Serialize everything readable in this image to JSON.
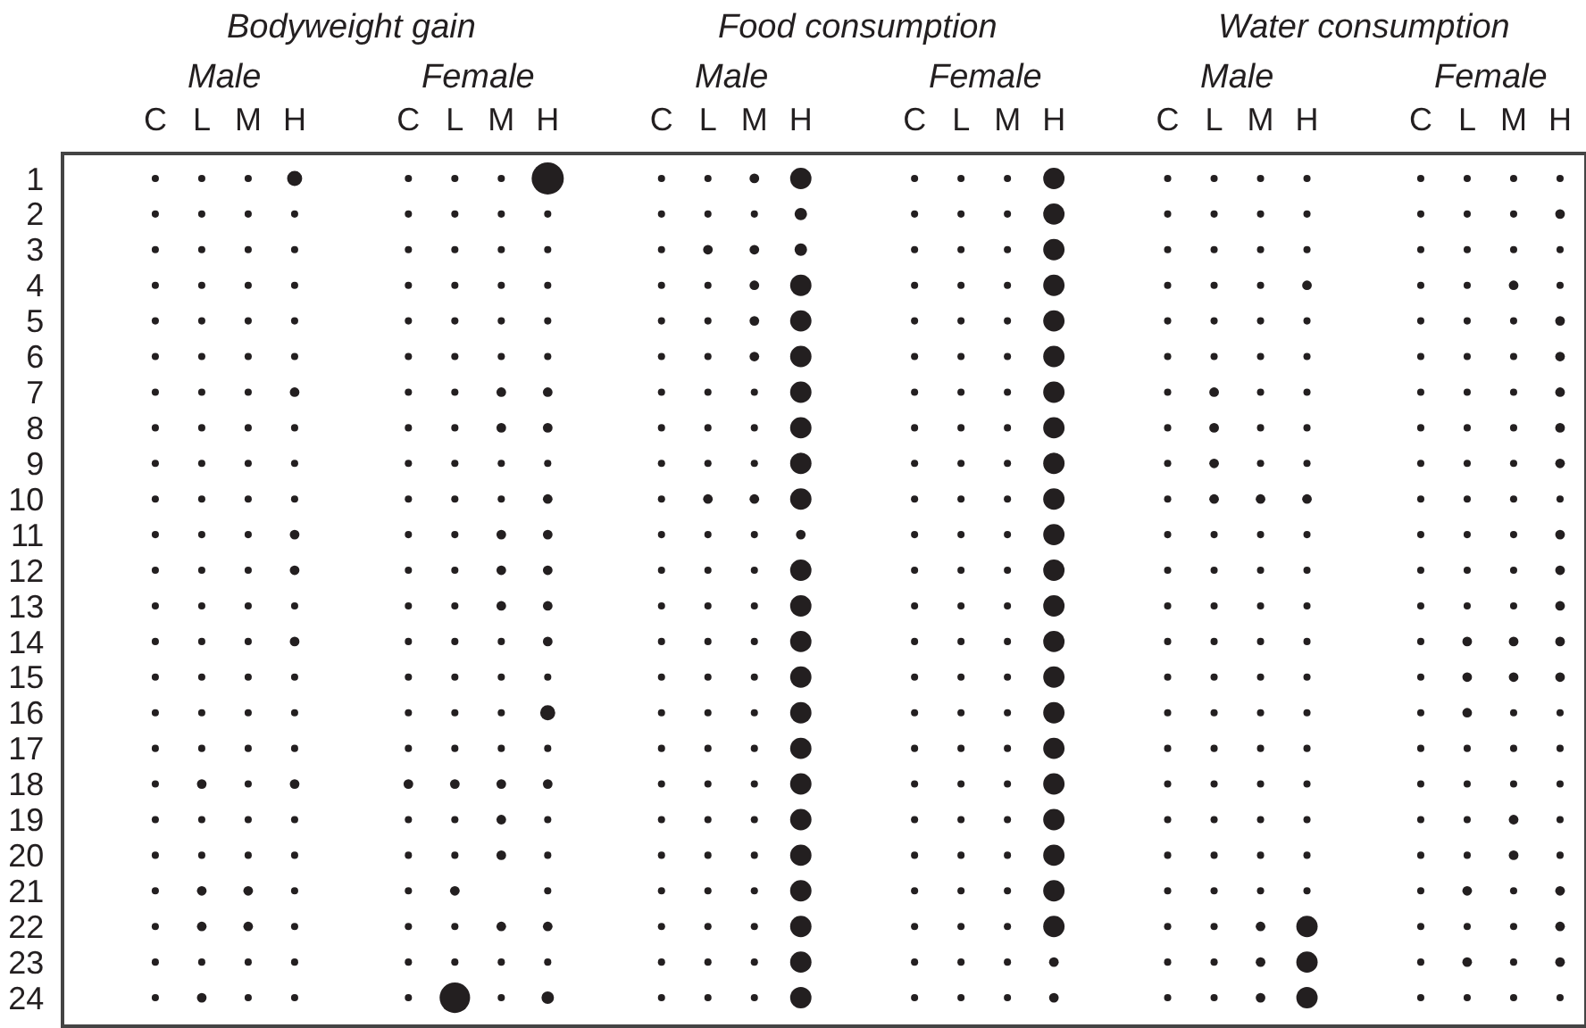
{
  "chart_data": {
    "type": "bubble",
    "marker": "circle",
    "categories": [
      "C",
      "L",
      "M",
      "H",
      "C",
      "L",
      "M",
      "H",
      "C",
      "L",
      "M",
      "H",
      "C",
      "L",
      "M",
      "H",
      "C",
      "L",
      "M",
      "H",
      "C",
      "L",
      "M",
      "H"
    ],
    "annotations": [
      "Bodyweight gain",
      "Food consumption",
      "Water consumption",
      "Male",
      "Female",
      "Male",
      "Female",
      "Male",
      "Female"
    ],
    "ylim": [
      24.75,
      0.35
    ],
    "yticks": [
      1,
      2,
      3,
      4,
      5,
      6,
      7,
      8,
      9,
      10,
      11,
      12,
      13,
      14,
      15,
      16,
      17,
      18,
      19,
      20,
      21,
      22,
      23,
      24
    ],
    "series": [
      {
        "color": "#231f20",
        "values": [
          1,
          1,
          1,
          1,
          1,
          1,
          1,
          1,
          1,
          1,
          1,
          1,
          1,
          1,
          1,
          1,
          1,
          1,
          1,
          1,
          1,
          1,
          1,
          1
        ],
        "sizes": [
          0.05,
          0.05,
          0.05,
          0.22,
          0.05,
          0.05,
          0.05,
          1,
          0.05,
          0.05,
          0.09,
          0.44,
          0.05,
          0.05,
          0.05,
          0.44,
          0.05,
          0.05,
          0.05,
          0.05,
          0.05,
          0.05,
          0.05,
          0.05
        ]
      },
      {
        "color": "#231f20",
        "values": [
          2,
          2,
          2,
          2,
          2,
          2,
          2,
          2,
          2,
          2,
          2,
          2,
          2,
          2,
          2,
          2,
          2,
          2,
          2,
          2,
          2,
          2,
          2,
          2
        ],
        "sizes": [
          0.05,
          0.05,
          0.05,
          0.05,
          0.05,
          0.05,
          0.05,
          0.05,
          0.05,
          0.05,
          0.05,
          0.15,
          0.05,
          0.05,
          0.05,
          0.44,
          0.05,
          0.05,
          0.05,
          0.05,
          0.05,
          0.05,
          0.05,
          0.09
        ]
      },
      {
        "color": "#231f20",
        "values": [
          3,
          3,
          3,
          3,
          3,
          3,
          3,
          3,
          3,
          3,
          3,
          3,
          3,
          3,
          3,
          3,
          3,
          3,
          3,
          3,
          3,
          3,
          3,
          3
        ],
        "sizes": [
          0.05,
          0.05,
          0.05,
          0.05,
          0.05,
          0.05,
          0.05,
          0.05,
          0.05,
          0.09,
          0.09,
          0.15,
          0.05,
          0.05,
          0.05,
          0.44,
          0.05,
          0.05,
          0.05,
          0.05,
          0.05,
          0.05,
          0.05,
          0.05
        ]
      },
      {
        "color": "#231f20",
        "values": [
          4,
          4,
          4,
          4,
          4,
          4,
          4,
          4,
          4,
          4,
          4,
          4,
          4,
          4,
          4,
          4,
          4,
          4,
          4,
          4,
          4,
          4,
          4,
          4
        ],
        "sizes": [
          0.05,
          0.05,
          0.05,
          0.05,
          0.05,
          0.05,
          0.05,
          0.05,
          0.05,
          0.05,
          0.09,
          0.44,
          0.05,
          0.05,
          0.05,
          0.44,
          0.05,
          0.05,
          0.05,
          0.09,
          0.05,
          0.05,
          0.09,
          0.05
        ]
      },
      {
        "color": "#231f20",
        "values": [
          5,
          5,
          5,
          5,
          5,
          5,
          5,
          5,
          5,
          5,
          5,
          5,
          5,
          5,
          5,
          5,
          5,
          5,
          5,
          5,
          5,
          5,
          5,
          5
        ],
        "sizes": [
          0.05,
          0.05,
          0.05,
          0.05,
          0.05,
          0.05,
          0.05,
          0.05,
          0.05,
          0.05,
          0.09,
          0.44,
          0.05,
          0.05,
          0.05,
          0.44,
          0.05,
          0.05,
          0.05,
          0.05,
          0.05,
          0.05,
          0.05,
          0.09
        ]
      },
      {
        "color": "#231f20",
        "values": [
          6,
          6,
          6,
          6,
          6,
          6,
          6,
          6,
          6,
          6,
          6,
          6,
          6,
          6,
          6,
          6,
          6,
          6,
          6,
          6,
          6,
          6,
          6,
          6
        ],
        "sizes": [
          0.05,
          0.05,
          0.05,
          0.05,
          0.05,
          0.05,
          0.05,
          0.05,
          0.05,
          0.05,
          0.09,
          0.44,
          0.05,
          0.05,
          0.05,
          0.44,
          0.05,
          0.05,
          0.05,
          0.05,
          0.05,
          0.05,
          0.05,
          0.09
        ]
      },
      {
        "color": "#231f20",
        "values": [
          7,
          7,
          7,
          7,
          7,
          7,
          7,
          7,
          7,
          7,
          7,
          7,
          7,
          7,
          7,
          7,
          7,
          7,
          7,
          7,
          7,
          7,
          7,
          7
        ],
        "sizes": [
          0.05,
          0.05,
          0.05,
          0.09,
          0.05,
          0.05,
          0.09,
          0.09,
          0.05,
          0.05,
          0.05,
          0.44,
          0.05,
          0.05,
          0.05,
          0.44,
          0.05,
          0.09,
          0.05,
          0.05,
          0.05,
          0.05,
          0.05,
          0.09
        ]
      },
      {
        "color": "#231f20",
        "values": [
          8,
          8,
          8,
          8,
          8,
          8,
          8,
          8,
          8,
          8,
          8,
          8,
          8,
          8,
          8,
          8,
          8,
          8,
          8,
          8,
          8,
          8,
          8,
          8
        ],
        "sizes": [
          0.05,
          0.05,
          0.05,
          0.05,
          0.05,
          0.05,
          0.09,
          0.09,
          0.05,
          0.05,
          0.05,
          0.44,
          0.05,
          0.05,
          0.05,
          0.44,
          0.05,
          0.09,
          0.05,
          0.05,
          0.05,
          0.05,
          0.05,
          0.09
        ]
      },
      {
        "color": "#231f20",
        "values": [
          9,
          9,
          9,
          9,
          9,
          9,
          9,
          9,
          9,
          9,
          9,
          9,
          9,
          9,
          9,
          9,
          9,
          9,
          9,
          9,
          9,
          9,
          9,
          9
        ],
        "sizes": [
          0.05,
          0.05,
          0.05,
          0.05,
          0.05,
          0.05,
          0.05,
          0.05,
          0.05,
          0.05,
          0.05,
          0.44,
          0.05,
          0.05,
          0.05,
          0.44,
          0.05,
          0.09,
          0.05,
          0.05,
          0.05,
          0.05,
          0.05,
          0.09
        ]
      },
      {
        "color": "#231f20",
        "values": [
          10,
          10,
          10,
          10,
          10,
          10,
          10,
          10,
          10,
          10,
          10,
          10,
          10,
          10,
          10,
          10,
          10,
          10,
          10,
          10,
          10,
          10,
          10,
          10
        ],
        "sizes": [
          0.05,
          0.05,
          0.05,
          0.05,
          0.05,
          0.05,
          0.05,
          0.09,
          0.05,
          0.09,
          0.09,
          0.44,
          0.05,
          0.05,
          0.05,
          0.44,
          0.05,
          0.09,
          0.09,
          0.09,
          0.05,
          0.05,
          0.05,
          0.05
        ]
      },
      {
        "color": "#231f20",
        "values": [
          11,
          11,
          11,
          11,
          11,
          11,
          11,
          11,
          11,
          11,
          11,
          11,
          11,
          11,
          11,
          11,
          11,
          11,
          11,
          11,
          11,
          11,
          11,
          11
        ],
        "sizes": [
          0.05,
          0.05,
          0.05,
          0.09,
          0.05,
          0.05,
          0.09,
          0.09,
          0.05,
          0.05,
          0.05,
          0.09,
          0.05,
          0.05,
          0.05,
          0.44,
          0.05,
          0.05,
          0.05,
          0.05,
          0.05,
          0.05,
          0.05,
          0.09
        ]
      },
      {
        "color": "#231f20",
        "values": [
          12,
          12,
          12,
          12,
          12,
          12,
          12,
          12,
          12,
          12,
          12,
          12,
          12,
          12,
          12,
          12,
          12,
          12,
          12,
          12,
          12,
          12,
          12,
          12
        ],
        "sizes": [
          0.05,
          0.05,
          0.05,
          0.09,
          0.05,
          0.05,
          0.09,
          0.09,
          0.05,
          0.05,
          0.05,
          0.44,
          0.05,
          0.05,
          0.05,
          0.44,
          0.05,
          0.05,
          0.05,
          0.05,
          0.05,
          0.05,
          0.05,
          0.09
        ]
      },
      {
        "color": "#231f20",
        "values": [
          13,
          13,
          13,
          13,
          13,
          13,
          13,
          13,
          13,
          13,
          13,
          13,
          13,
          13,
          13,
          13,
          13,
          13,
          13,
          13,
          13,
          13,
          13,
          13
        ],
        "sizes": [
          0.05,
          0.05,
          0.05,
          0.05,
          0.05,
          0.05,
          0.09,
          0.09,
          0.05,
          0.05,
          0.05,
          0.44,
          0.05,
          0.05,
          0.05,
          0.44,
          0.05,
          0.05,
          0.05,
          0.05,
          0.05,
          0.05,
          0.05,
          0.09
        ]
      },
      {
        "color": "#231f20",
        "values": [
          14,
          14,
          14,
          14,
          14,
          14,
          14,
          14,
          14,
          14,
          14,
          14,
          14,
          14,
          14,
          14,
          14,
          14,
          14,
          14,
          14,
          14,
          14,
          14
        ],
        "sizes": [
          0.05,
          0.05,
          0.05,
          0.09,
          0.05,
          0.05,
          0.05,
          0.09,
          0.05,
          0.05,
          0.05,
          0.44,
          0.05,
          0.05,
          0.05,
          0.44,
          0.05,
          0.05,
          0.05,
          0.05,
          0.05,
          0.09,
          0.09,
          0.09
        ]
      },
      {
        "color": "#231f20",
        "values": [
          15,
          15,
          15,
          15,
          15,
          15,
          15,
          15,
          15,
          15,
          15,
          15,
          15,
          15,
          15,
          15,
          15,
          15,
          15,
          15,
          15,
          15,
          15,
          15
        ],
        "sizes": [
          0.05,
          0.05,
          0.05,
          0.05,
          0.05,
          0.05,
          0.05,
          0.05,
          0.05,
          0.05,
          0.05,
          0.44,
          0.05,
          0.05,
          0.05,
          0.44,
          0.05,
          0.05,
          0.05,
          0.05,
          0.05,
          0.09,
          0.09,
          0.09
        ]
      },
      {
        "color": "#231f20",
        "values": [
          16,
          16,
          16,
          16,
          16,
          16,
          16,
          16,
          16,
          16,
          16,
          16,
          16,
          16,
          16,
          16,
          16,
          16,
          16,
          16,
          16,
          16,
          16,
          16
        ],
        "sizes": [
          0.05,
          0.05,
          0.05,
          0.05,
          0.05,
          0.05,
          0.05,
          0.22,
          0.05,
          0.05,
          0.05,
          0.44,
          0.05,
          0.05,
          0.05,
          0.44,
          0.05,
          0.05,
          0.05,
          0.05,
          0.05,
          0.09,
          0.05,
          0.05
        ]
      },
      {
        "color": "#231f20",
        "values": [
          17,
          17,
          17,
          17,
          17,
          17,
          17,
          17,
          17,
          17,
          17,
          17,
          17,
          17,
          17,
          17,
          17,
          17,
          17,
          17,
          17,
          17,
          17,
          17
        ],
        "sizes": [
          0.05,
          0.05,
          0.05,
          0.05,
          0.05,
          0.05,
          0.05,
          0.05,
          0.05,
          0.05,
          0.05,
          0.44,
          0.05,
          0.05,
          0.05,
          0.44,
          0.05,
          0.05,
          0.05,
          0.05,
          0.05,
          0.05,
          0.05,
          0.05
        ]
      },
      {
        "color": "#231f20",
        "values": [
          18,
          18,
          18,
          18,
          18,
          18,
          18,
          18,
          18,
          18,
          18,
          18,
          18,
          18,
          18,
          18,
          18,
          18,
          18,
          18,
          18,
          18,
          18,
          18
        ],
        "sizes": [
          0.05,
          0.09,
          0.05,
          0.09,
          0.09,
          0.09,
          0.09,
          0.09,
          0.05,
          0.05,
          0.05,
          0.44,
          0.05,
          0.05,
          0.05,
          0.44,
          0.05,
          0.05,
          0.05,
          0.05,
          0.05,
          0.05,
          0.05,
          0.05
        ]
      },
      {
        "color": "#231f20",
        "values": [
          19,
          19,
          19,
          19,
          19,
          19,
          19,
          19,
          19,
          19,
          19,
          19,
          19,
          19,
          19,
          19,
          19,
          19,
          19,
          19,
          19,
          19,
          19,
          19
        ],
        "sizes": [
          0.05,
          0.05,
          0.05,
          0.05,
          0.05,
          0.05,
          0.09,
          0.05,
          0.05,
          0.05,
          0.05,
          0.44,
          0.05,
          0.05,
          0.05,
          0.44,
          0.05,
          0.05,
          0.05,
          0.05,
          0.05,
          0.05,
          0.09,
          0.05
        ]
      },
      {
        "color": "#231f20",
        "values": [
          20,
          20,
          20,
          20,
          20,
          20,
          20,
          20,
          20,
          20,
          20,
          20,
          20,
          20,
          20,
          20,
          20,
          20,
          20,
          20,
          20,
          20,
          20,
          20
        ],
        "sizes": [
          0.05,
          0.05,
          0.05,
          0.05,
          0.05,
          0.05,
          0.09,
          0.05,
          0.05,
          0.05,
          0.05,
          0.44,
          0.05,
          0.05,
          0.05,
          0.44,
          0.05,
          0.05,
          0.05,
          0.05,
          0.05,
          0.05,
          0.09,
          0.05
        ]
      },
      {
        "color": "#231f20",
        "values": [
          21,
          21,
          21,
          21,
          21,
          21,
          null,
          21,
          21,
          21,
          21,
          21,
          21,
          21,
          21,
          21,
          21,
          21,
          21,
          21,
          21,
          21,
          21,
          21
        ],
        "sizes": [
          0.05,
          0.09,
          0.09,
          0.05,
          0.05,
          0.09,
          null,
          0.05,
          0.05,
          0.05,
          0.05,
          0.44,
          0.05,
          0.05,
          0.05,
          0.44,
          0.05,
          0.05,
          0.05,
          0.05,
          0.05,
          0.09,
          0.05,
          0.09
        ]
      },
      {
        "color": "#231f20",
        "values": [
          22,
          22,
          22,
          22,
          22,
          22,
          22,
          22,
          22,
          22,
          22,
          22,
          22,
          22,
          22,
          22,
          22,
          22,
          22,
          22,
          22,
          22,
          22,
          22
        ],
        "sizes": [
          0.05,
          0.09,
          0.09,
          0.05,
          0.05,
          0.05,
          0.09,
          0.09,
          0.05,
          0.05,
          0.05,
          0.44,
          0.05,
          0.05,
          0.05,
          0.44,
          0.05,
          0.05,
          0.09,
          0.44,
          0.05,
          0.05,
          0.05,
          0.09
        ]
      },
      {
        "color": "#231f20",
        "values": [
          23,
          23,
          23,
          23,
          23,
          23,
          23,
          23,
          23,
          23,
          23,
          23,
          23,
          23,
          23,
          23,
          23,
          23,
          23,
          23,
          23,
          23,
          23,
          23
        ],
        "sizes": [
          0.05,
          0.05,
          0.05,
          0.05,
          0.05,
          0.05,
          0.05,
          0.05,
          0.05,
          0.05,
          0.05,
          0.44,
          0.05,
          0.05,
          0.05,
          0.09,
          0.05,
          0.05,
          0.09,
          0.44,
          0.05,
          0.09,
          0.05,
          0.09
        ]
      },
      {
        "color": "#231f20",
        "values": [
          24,
          24,
          24,
          24,
          24,
          24,
          24,
          24,
          24,
          24,
          24,
          24,
          24,
          24,
          24,
          24,
          24,
          24,
          24,
          24,
          24,
          24,
          24,
          24
        ],
        "sizes": [
          0.05,
          0.09,
          0.05,
          0.05,
          0.05,
          0.9,
          0.05,
          0.15,
          0.05,
          0.05,
          0.05,
          0.44,
          0.05,
          0.05,
          0.05,
          0.09,
          0.05,
          0.05,
          0.09,
          0.44,
          0.05,
          0.05,
          0.05,
          0.05
        ]
      }
    ]
  }
}
